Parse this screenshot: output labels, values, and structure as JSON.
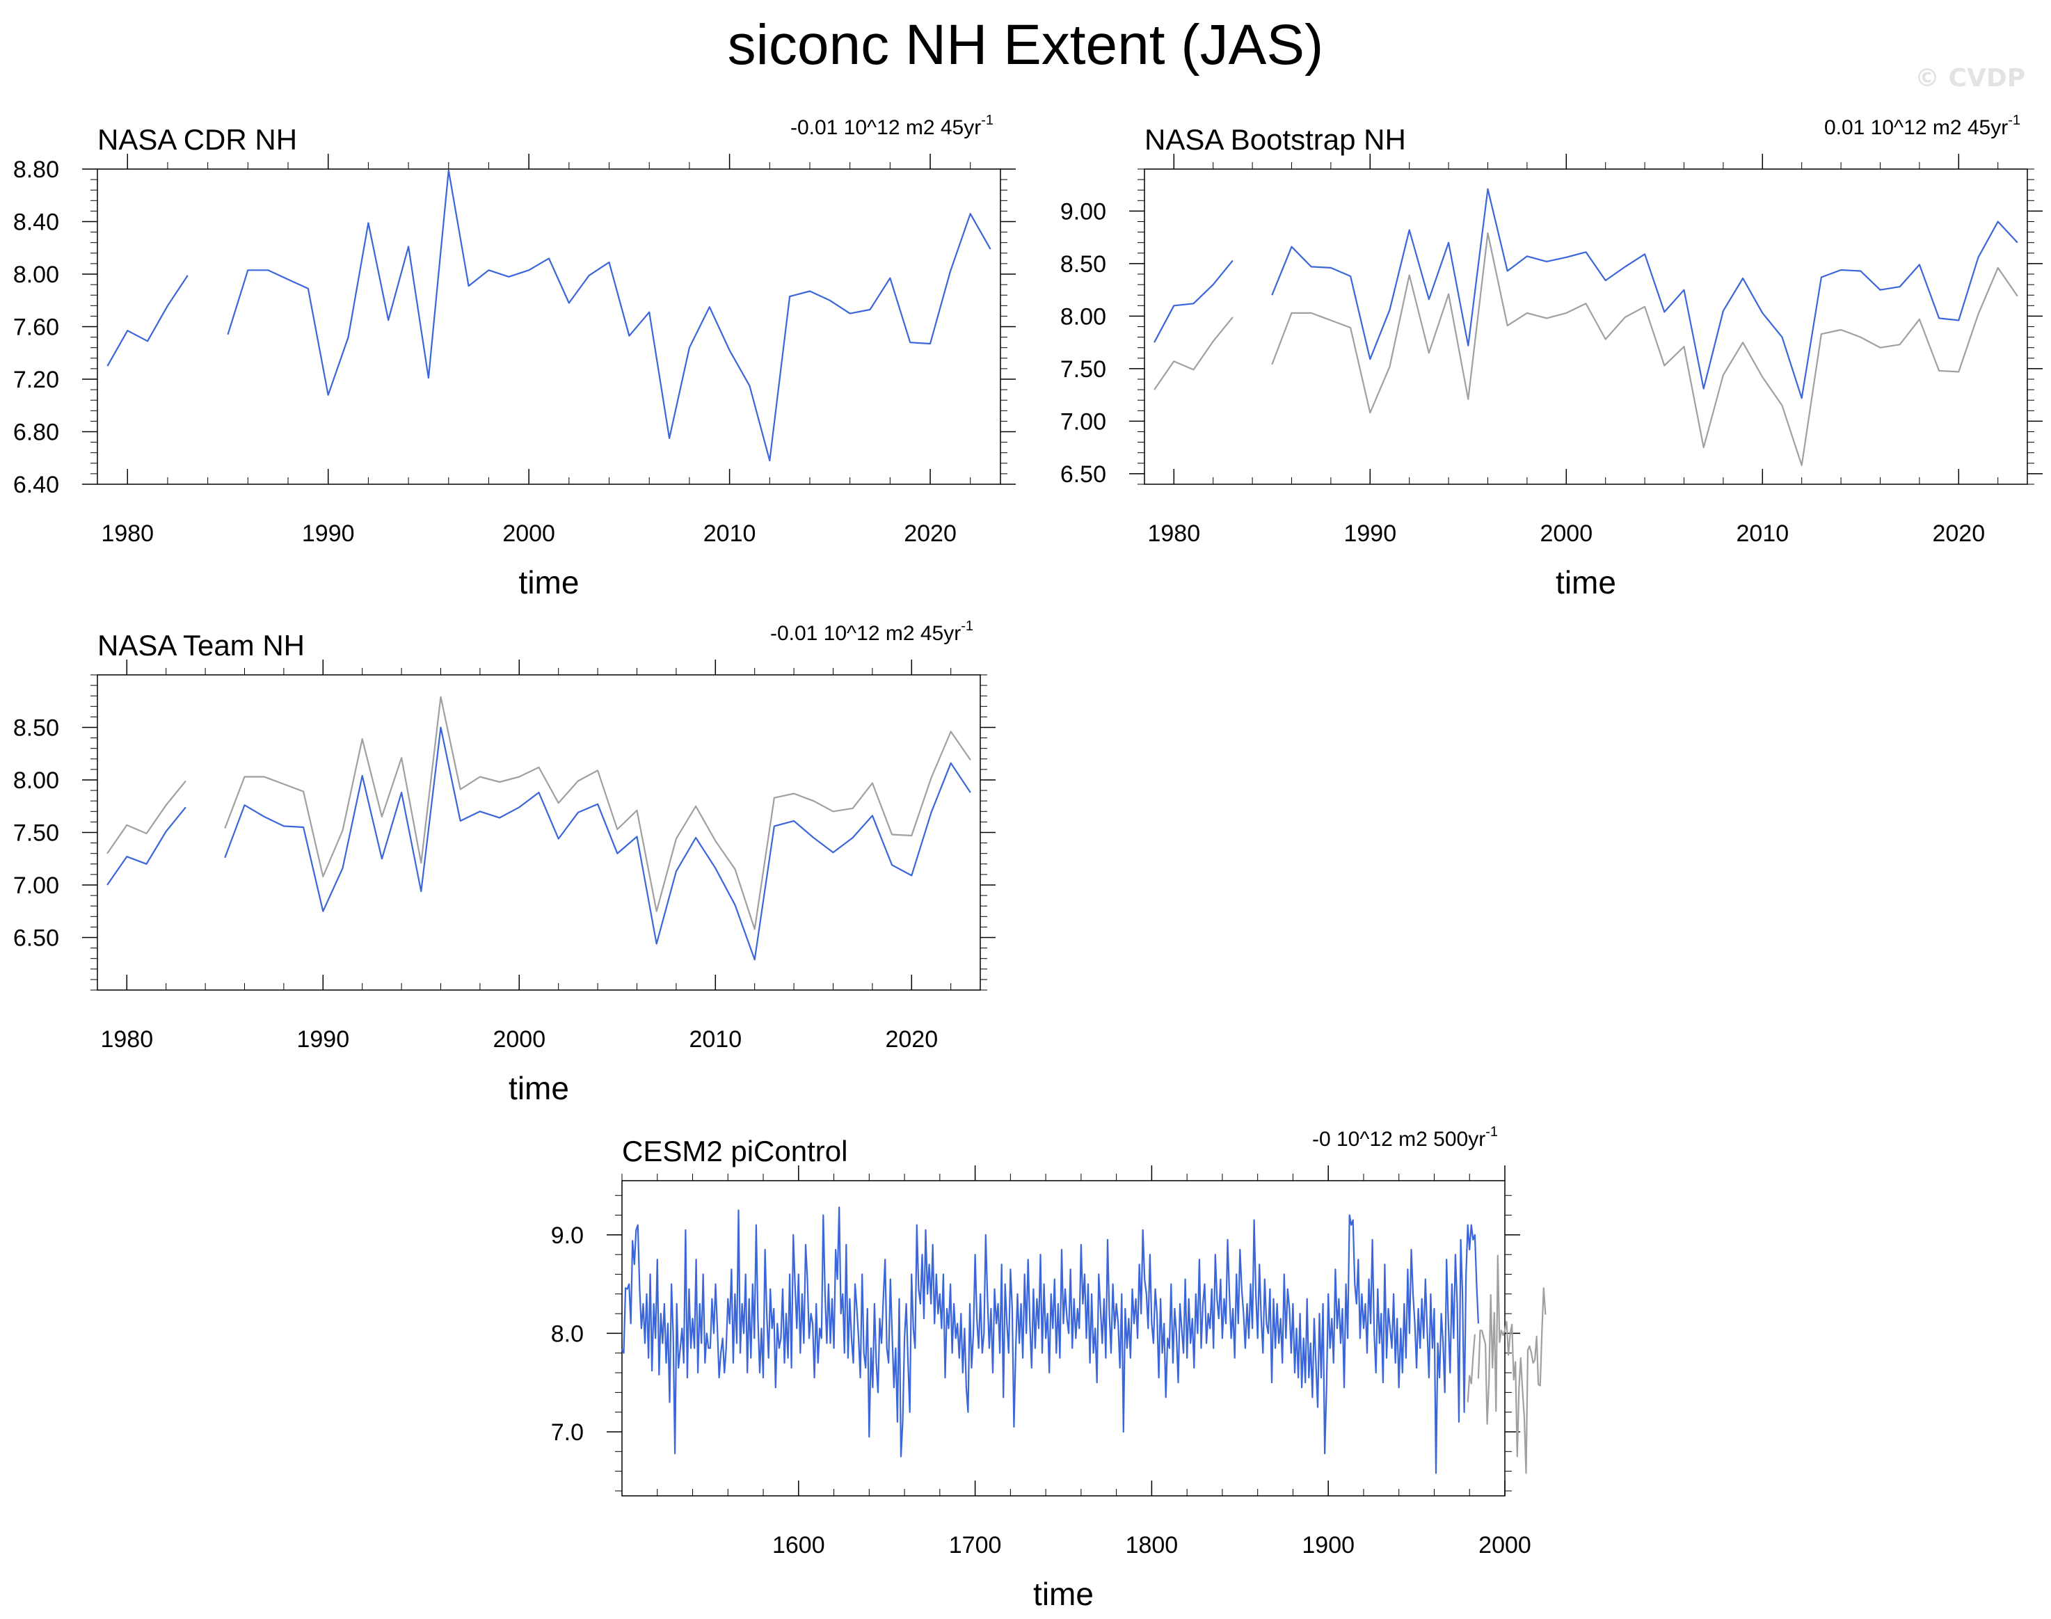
{
  "page": {
    "title": "siconc NH Extent (JAS)",
    "watermark": "© CVDP"
  },
  "colors": {
    "model": "#3a66d9",
    "reference": "#a0a0a0",
    "axis": "#000000"
  },
  "chart_data": [
    {
      "type": "line",
      "title": "NASA CDR NH",
      "trend_label": "-0.01 10^12 m2 45yr",
      "trend_superscript": "-1",
      "xlabel": "time",
      "ylabel": "",
      "xlim": [
        1978.5,
        2023.5
      ],
      "ylim": [
        6.4,
        8.8
      ],
      "xticks": [
        1980,
        1990,
        2000,
        2010,
        2020
      ],
      "xtick_labels": [
        "1980",
        "1990",
        "2000",
        "2010",
        "2020"
      ],
      "yticks": [
        6.4,
        6.8,
        7.2,
        7.6,
        8.0,
        8.4,
        8.8
      ],
      "ytick_labels": [
        "6.40",
        "6.80",
        "7.20",
        "7.60",
        "8.00",
        "8.40",
        "8.80"
      ],
      "grid": false,
      "series": [
        {
          "role": "model",
          "x_start": 1979,
          "values": [
            7.3,
            7.57,
            7.49,
            7.76,
            7.99,
            null,
            7.54,
            8.03,
            8.03,
            7.96,
            7.89,
            7.08,
            7.52,
            8.39,
            7.65,
            8.21,
            7.21,
            8.79,
            7.91,
            8.03,
            7.98,
            8.03,
            8.12,
            7.78,
            7.99,
            8.09,
            7.53,
            7.71,
            6.75,
            7.44,
            7.75,
            7.42,
            7.15,
            6.58,
            7.83,
            7.87,
            7.8,
            7.7,
            7.73,
            7.97,
            7.48,
            7.47,
            8.02,
            8.46,
            8.19
          ]
        }
      ]
    },
    {
      "type": "line",
      "title": "NASA Bootstrap NH",
      "trend_label": "0.01 10^12 m2 45yr",
      "trend_superscript": "-1",
      "xlabel": "time",
      "ylabel": "",
      "xlim": [
        1978.5,
        2023.5
      ],
      "ylim": [
        6.4,
        9.4
      ],
      "xticks": [
        1980,
        1990,
        2000,
        2010,
        2020
      ],
      "xtick_labels": [
        "1980",
        "1990",
        "2000",
        "2010",
        "2020"
      ],
      "yticks": [
        6.5,
        7.0,
        7.5,
        8.0,
        8.5,
        9.0
      ],
      "ytick_labels": [
        "6.50",
        "7.00",
        "7.50",
        "8.00",
        "8.50",
        "9.00"
      ],
      "grid": false,
      "series": [
        {
          "role": "reference",
          "x_start": 1979,
          "values": [
            7.3,
            7.57,
            7.49,
            7.76,
            7.99,
            null,
            7.54,
            8.03,
            8.03,
            7.96,
            7.89,
            7.08,
            7.52,
            8.39,
            7.65,
            8.21,
            7.21,
            8.79,
            7.91,
            8.03,
            7.98,
            8.03,
            8.12,
            7.78,
            7.99,
            8.09,
            7.53,
            7.71,
            6.75,
            7.44,
            7.75,
            7.42,
            7.15,
            6.58,
            7.83,
            7.87,
            7.8,
            7.7,
            7.73,
            7.97,
            7.48,
            7.47,
            8.02,
            8.46,
            8.19
          ]
        },
        {
          "role": "model",
          "x_start": 1979,
          "values": [
            7.75,
            8.1,
            8.12,
            8.3,
            8.53,
            null,
            8.2,
            8.66,
            8.47,
            8.46,
            8.38,
            7.59,
            8.06,
            8.82,
            8.16,
            8.7,
            7.72,
            9.21,
            8.43,
            8.57,
            8.52,
            8.56,
            8.61,
            8.34,
            8.47,
            8.59,
            8.04,
            8.25,
            7.31,
            8.05,
            8.36,
            8.03,
            7.8,
            7.22,
            8.37,
            8.44,
            8.43,
            8.25,
            8.28,
            8.49,
            7.98,
            7.96,
            8.56,
            8.9,
            8.7
          ]
        }
      ]
    },
    {
      "type": "line",
      "title": "NASA Team NH",
      "trend_label": "-0.01 10^12 m2 45yr",
      "trend_superscript": "-1",
      "xlabel": "time",
      "ylabel": "",
      "xlim": [
        1978.5,
        2023.5
      ],
      "ylim": [
        6.0,
        9.0
      ],
      "xticks": [
        1980,
        1990,
        2000,
        2010,
        2020
      ],
      "xtick_labels": [
        "1980",
        "1990",
        "2000",
        "2010",
        "2020"
      ],
      "yticks": [
        6.5,
        7.0,
        7.5,
        8.0,
        8.5
      ],
      "ytick_labels": [
        "6.50",
        "7.00",
        "7.50",
        "8.00",
        "8.50"
      ],
      "grid": false,
      "series": [
        {
          "role": "reference",
          "x_start": 1979,
          "values": [
            7.3,
            7.57,
            7.49,
            7.76,
            7.99,
            null,
            7.54,
            8.03,
            8.03,
            7.96,
            7.89,
            7.08,
            7.52,
            8.39,
            7.65,
            8.21,
            7.21,
            8.79,
            7.91,
            8.03,
            7.98,
            8.03,
            8.12,
            7.78,
            7.99,
            8.09,
            7.53,
            7.71,
            6.75,
            7.44,
            7.75,
            7.42,
            7.15,
            6.58,
            7.83,
            7.87,
            7.8,
            7.7,
            7.73,
            7.97,
            7.48,
            7.47,
            8.02,
            8.46,
            8.19
          ]
        },
        {
          "role": "model",
          "x_start": 1979,
          "values": [
            7.0,
            7.27,
            7.2,
            7.51,
            7.74,
            null,
            7.26,
            7.76,
            7.65,
            7.56,
            7.55,
            6.75,
            7.16,
            8.04,
            7.25,
            7.88,
            6.94,
            8.5,
            7.61,
            7.7,
            7.64,
            7.74,
            7.88,
            7.44,
            7.69,
            7.77,
            7.3,
            7.46,
            6.44,
            7.13,
            7.45,
            7.16,
            6.81,
            6.29,
            7.56,
            7.61,
            7.45,
            7.31,
            7.45,
            7.66,
            7.19,
            7.09,
            7.69,
            8.16,
            7.88
          ]
        }
      ]
    },
    {
      "type": "line",
      "title": "CESM2 piControl",
      "trend_label": "-0 10^12 m2 500yr",
      "trend_superscript": "-1",
      "xlabel": "time",
      "ylabel": "",
      "xlim": [
        1500,
        2000
      ],
      "ylim": [
        6.35,
        9.55
      ],
      "xticks": [
        1600,
        1700,
        1800,
        1900,
        2000
      ],
      "xtick_labels": [
        "1600",
        "1700",
        "1800",
        "1900",
        "2000"
      ],
      "yticks": [
        7.0,
        8.0,
        9.0
      ],
      "ytick_labels": [
        "7.0",
        "8.0",
        "9.0"
      ],
      "grid": false,
      "series": [
        {
          "role": "model",
          "x_start": 1500,
          "values": [
            7.84,
            7.8,
            8.46,
            8.45,
            8.5,
            8.1,
            8.94,
            8.7,
            9.05,
            9.1,
            8.45,
            8.05,
            8.3,
            7.9,
            8.4,
            7.75,
            8.6,
            7.62,
            8.3,
            7.95,
            8.75,
            7.58,
            8.2,
            7.9,
            8.3,
            7.7,
            8.1,
            7.3,
            8.5,
            8.0,
            6.78,
            8.3,
            7.65,
            7.85,
            8.05,
            7.7,
            9.05,
            7.55,
            8.45,
            7.85,
            8.15,
            7.85,
            8.75,
            7.6,
            8.3,
            7.9,
            8.6,
            7.7,
            8.0,
            7.85,
            7.85,
            8.35,
            8.0,
            8.5,
            8.05,
            7.55,
            7.8,
            7.95,
            7.6,
            7.84,
            8.35,
            8.1,
            8.65,
            7.7,
            8.4,
            7.9,
            9.25,
            7.8,
            8.3,
            8.0,
            8.6,
            7.6,
            8.35,
            7.75,
            8.5,
            7.95,
            9.1,
            8.15,
            7.6,
            8.05,
            7.55,
            8.85,
            8.2,
            7.75,
            8.45,
            8.05,
            8.25,
            7.45,
            8.1,
            7.85,
            7.95,
            8.45,
            7.7,
            8.2,
            7.75,
            8.6,
            7.65,
            9.0,
            8.5,
            8.05,
            8.6,
            7.8,
            8.4,
            7.9,
            8.9,
            8.55,
            7.95,
            8.2,
            8.1,
            7.55,
            8.3,
            7.7,
            8.05,
            7.95,
            9.2,
            8.4,
            7.9,
            8.5,
            7.9,
            8.35,
            7.85,
            8.85,
            8.55,
            9.28,
            8.2,
            8.4,
            7.8,
            8.9,
            7.75,
            8.35,
            7.95,
            7.7,
            8.5,
            8.25,
            7.95,
            7.55,
            8.6,
            7.8,
            7.65,
            8.25,
            6.95,
            7.85,
            7.45,
            8.3,
            7.7,
            7.4,
            8.15,
            7.9,
            8.35,
            8.75,
            7.85,
            7.7,
            8.55,
            8.0,
            7.45,
            7.85,
            7.1,
            8.35,
            6.75,
            7.1,
            7.95,
            8.3,
            7.7,
            7.2,
            8.6,
            8.05,
            7.85,
            9.1,
            8.45,
            8.3,
            8.8,
            8.15,
            9.05,
            8.4,
            8.7,
            8.3,
            8.9,
            8.1,
            8.6,
            8.2,
            8.4,
            8.05,
            8.6,
            7.55,
            8.25,
            8.05,
            8.5,
            7.8,
            8.3,
            7.95,
            8.1,
            7.75,
            8.2,
            7.6,
            8.05,
            7.45,
            7.2,
            8.3,
            7.65,
            8.0,
            8.8,
            8.15,
            7.85,
            8.4,
            7.8,
            8.0,
            9.0,
            8.35,
            7.85,
            8.25,
            7.6,
            8.45,
            8.1,
            8.3,
            7.8,
            8.7,
            7.35,
            8.5,
            8.1,
            7.8,
            8.65,
            8.25,
            7.05,
            7.85,
            8.4,
            7.9,
            8.3,
            7.75,
            8.6,
            8.0,
            8.75,
            8.1,
            7.65,
            8.45,
            7.85,
            8.35,
            8.05,
            8.8,
            7.8,
            8.5,
            7.95,
            8.2,
            7.6,
            8.4,
            8.05,
            8.55,
            7.8,
            8.3,
            7.75,
            8.85,
            8.1,
            8.45,
            8.15,
            8.0,
            8.65,
            7.85,
            8.35,
            7.95,
            8.25,
            8.05,
            8.9,
            8.3,
            8.6,
            7.95,
            8.5,
            7.7,
            8.4,
            7.8,
            8.05,
            7.5,
            8.6,
            8.25,
            7.9,
            8.35,
            7.75,
            8.95,
            8.2,
            7.8,
            8.5,
            8.05,
            8.3,
            8.1,
            7.65,
            8.4,
            7.0,
            8.25,
            7.85,
            8.15,
            7.75,
            8.45,
            8.1,
            8.35,
            7.95,
            8.7,
            8.2,
            9.05,
            8.55,
            8.4,
            8.05,
            8.8,
            8.1,
            7.9,
            8.45,
            8.2,
            7.55,
            8.35,
            7.8,
            8.1,
            7.35,
            7.95,
            7.85,
            8.5,
            7.7,
            8.25,
            8.0,
            7.5,
            8.3,
            8.05,
            7.8,
            8.55,
            7.75,
            8.35,
            7.9,
            8.15,
            7.65,
            8.4,
            8.0,
            8.75,
            7.85,
            8.3,
            8.5,
            7.9,
            8.2,
            8.05,
            8.45,
            7.85,
            8.8,
            8.35,
            8.15,
            8.55,
            7.95,
            8.35,
            8.1,
            8.95,
            8.4,
            7.95,
            8.25,
            7.75,
            8.6,
            8.1,
            8.85,
            8.45,
            8.2,
            7.85,
            8.3,
            7.95,
            8.5,
            8.05,
            9.15,
            8.4,
            7.95,
            8.7,
            8.15,
            7.8,
            8.55,
            8.1,
            8.0,
            8.45,
            7.5,
            8.35,
            7.85,
            8.3,
            7.9,
            8.15,
            7.7,
            8.6,
            7.95,
            8.45,
            8.25,
            7.8,
            8.3,
            7.6,
            8.05,
            7.55,
            8.2,
            7.45,
            7.95,
            7.5,
            8.35,
            7.55,
            7.9,
            7.35,
            8.15,
            7.7,
            7.25,
            8.2,
            7.55,
            8.3,
            6.78,
            7.45,
            8.4,
            7.85,
            8.15,
            7.7,
            8.65,
            8.05,
            8.35,
            7.9,
            8.25,
            7.45,
            8.5,
            7.95,
            9.2,
            9.1,
            9.15,
            8.5,
            8.3,
            8.75,
            7.95,
            8.4,
            8.05,
            8.3,
            7.8,
            8.55,
            8.1,
            8.95,
            8.0,
            7.6,
            8.45,
            7.9,
            8.2,
            7.5,
            8.7,
            7.75,
            8.25,
            8.05,
            7.85,
            8.4,
            7.7,
            8.15,
            7.45,
            8.05,
            7.6,
            8.3,
            7.75,
            8.65,
            8.0,
            8.85,
            8.4,
            8.1,
            7.65,
            8.25,
            7.85,
            8.35,
            7.95,
            8.55,
            8.05,
            7.55,
            8.4,
            7.85,
            8.25,
            6.58,
            7.9,
            7.55,
            8.2,
            7.9,
            7.4,
            8.75,
            8.1,
            7.6,
            8.5,
            7.95,
            8.8,
            8.3,
            7.1,
            8.95,
            8.4,
            7.2,
            8.6,
            9.1,
            8.85,
            9.1,
            8.95,
            9.0,
            8.5,
            8.1
          ]
        },
        {
          "role": "reference",
          "x_start": 1979,
          "values": [
            7.3,
            7.57,
            7.49,
            7.76,
            7.99,
            null,
            7.54,
            8.03,
            8.03,
            7.96,
            7.89,
            7.08,
            7.52,
            8.39,
            7.65,
            8.21,
            7.21,
            8.79,
            7.91,
            8.03,
            7.98,
            8.03,
            8.12,
            7.78,
            7.99,
            8.09,
            7.53,
            7.71,
            6.75,
            7.44,
            7.75,
            7.42,
            7.15,
            6.58,
            7.83,
            7.87,
            7.8,
            7.7,
            7.73,
            7.97,
            7.48,
            7.47,
            8.02,
            8.46,
            8.19
          ]
        }
      ]
    }
  ]
}
